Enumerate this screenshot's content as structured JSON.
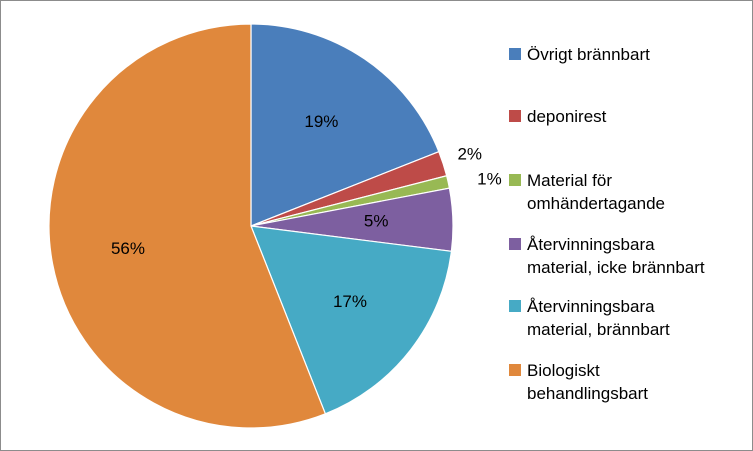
{
  "chart_data": {
    "type": "pie",
    "title": "",
    "legend_position": "right",
    "slices": [
      {
        "label": "Övrigt brännbart",
        "value": 19,
        "display": "19%",
        "color": "#4a7ebb"
      },
      {
        "label": "deponirest",
        "value": 2,
        "display": "2%",
        "color": "#be4b48"
      },
      {
        "label": "Material för\nomhändertagande",
        "value": 1,
        "display": "1%",
        "color": "#98b954"
      },
      {
        "label": "Återvinningsbara\nmaterial, icke brännbart",
        "value": 5,
        "display": "5%",
        "color": "#7d5fa0"
      },
      {
        "label": "Återvinningsbara\nmaterial, brännbart",
        "value": 17,
        "display": "17%",
        "color": "#46aac5"
      },
      {
        "label": "Biologiskt\nbehandlingsbart",
        "value": 56,
        "display": "56%",
        "color": "#e0883c"
      }
    ]
  }
}
